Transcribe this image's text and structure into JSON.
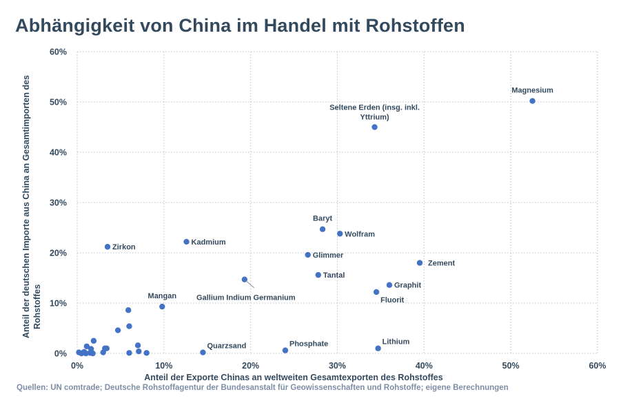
{
  "title": "Abhängigkeit von China im Handel mit Rohstoffen",
  "source": "Quellen: UN comtrade; Deutsche Rohstoffagentur der Bundesanstalt für Geowissenschaften und Rohstoffe; eigene Berechnungen",
  "chart_data": {
    "type": "scatter",
    "title": "Abhängigkeit von China im Handel mit Rohstoffen",
    "xlabel": "Anteil der Exporte Chinas an weltweiten Gesamtexporten des Rohstoffes",
    "ylabel_lines": [
      "Anteil der deutschen Importe aus China an Gesamtimporten des",
      "Rohstoffes"
    ],
    "xlim": [
      0,
      60
    ],
    "ylim": [
      0,
      60
    ],
    "x_ticks": [
      0,
      10,
      20,
      30,
      40,
      50,
      60
    ],
    "y_ticks": [
      0,
      10,
      20,
      30,
      40,
      50,
      60
    ],
    "x_tick_labels": [
      "0%",
      "10%",
      "20%",
      "30%",
      "40%",
      "50%",
      "60%"
    ],
    "y_tick_labels": [
      "0%",
      "10%",
      "20%",
      "30%",
      "40%",
      "50%",
      "60%"
    ],
    "grid": true,
    "color": "#4472c4",
    "labeled_points": [
      {
        "name": "Magnesium",
        "x": 52.5,
        "y": 50.2,
        "pos": "above"
      },
      {
        "name": "Seltene Erden (insg. inkl.",
        "name2": "Yttrium)",
        "x": 34.3,
        "y": 45.0,
        "pos": "above2"
      },
      {
        "name": "Baryt",
        "x": 28.3,
        "y": 24.7,
        "pos": "above"
      },
      {
        "name": "Wolfram",
        "x": 30.3,
        "y": 23.8,
        "pos": "right"
      },
      {
        "name": "Zirkon",
        "x": 3.5,
        "y": 21.2,
        "pos": "right"
      },
      {
        "name": "Kadmium",
        "x": 12.6,
        "y": 22.2,
        "pos": "right"
      },
      {
        "name": "Glimmer",
        "x": 26.6,
        "y": 19.6,
        "pos": "right"
      },
      {
        "name": "Zement",
        "x": 39.5,
        "y": 18.0,
        "pos": "rightfar"
      },
      {
        "name": "Tantal",
        "x": 27.8,
        "y": 15.6,
        "pos": "right"
      },
      {
        "name": "Graphit",
        "x": 36.0,
        "y": 13.6,
        "pos": "right"
      },
      {
        "name": "Gallium Indium Germanium",
        "x": 19.3,
        "y": 14.7,
        "pos": "leader"
      },
      {
        "name": "Fluorit",
        "x": 34.5,
        "y": 12.2,
        "pos": "belowright"
      },
      {
        "name": "Mangan",
        "x": 9.8,
        "y": 9.3,
        "pos": "above"
      },
      {
        "name": "Quarzsand",
        "x": 14.5,
        "y": 0.2,
        "pos": "rightup"
      },
      {
        "name": "Phosphate",
        "x": 24.0,
        "y": 0.6,
        "pos": "rightup"
      },
      {
        "name": "Lithium",
        "x": 34.7,
        "y": 1.0,
        "pos": "rightup"
      }
    ],
    "unlabeled_points": [
      {
        "x": 0.2,
        "y": 0.2
      },
      {
        "x": 0.5,
        "y": 0.0
      },
      {
        "x": 0.8,
        "y": 0.3
      },
      {
        "x": 1.0,
        "y": 0.0
      },
      {
        "x": 1.1,
        "y": 1.4
      },
      {
        "x": 1.5,
        "y": 0.1
      },
      {
        "x": 1.6,
        "y": 0.9
      },
      {
        "x": 1.8,
        "y": 0.0
      },
      {
        "x": 1.9,
        "y": 2.5
      },
      {
        "x": 3.0,
        "y": 0.2
      },
      {
        "x": 3.2,
        "y": 1.0
      },
      {
        "x": 3.4,
        "y": 1.0
      },
      {
        "x": 4.7,
        "y": 4.6
      },
      {
        "x": 5.9,
        "y": 8.6
      },
      {
        "x": 6.0,
        "y": 5.4
      },
      {
        "x": 6.0,
        "y": 0.1
      },
      {
        "x": 7.0,
        "y": 1.6
      },
      {
        "x": 7.1,
        "y": 0.4
      },
      {
        "x": 8.0,
        "y": 0.1
      }
    ]
  }
}
